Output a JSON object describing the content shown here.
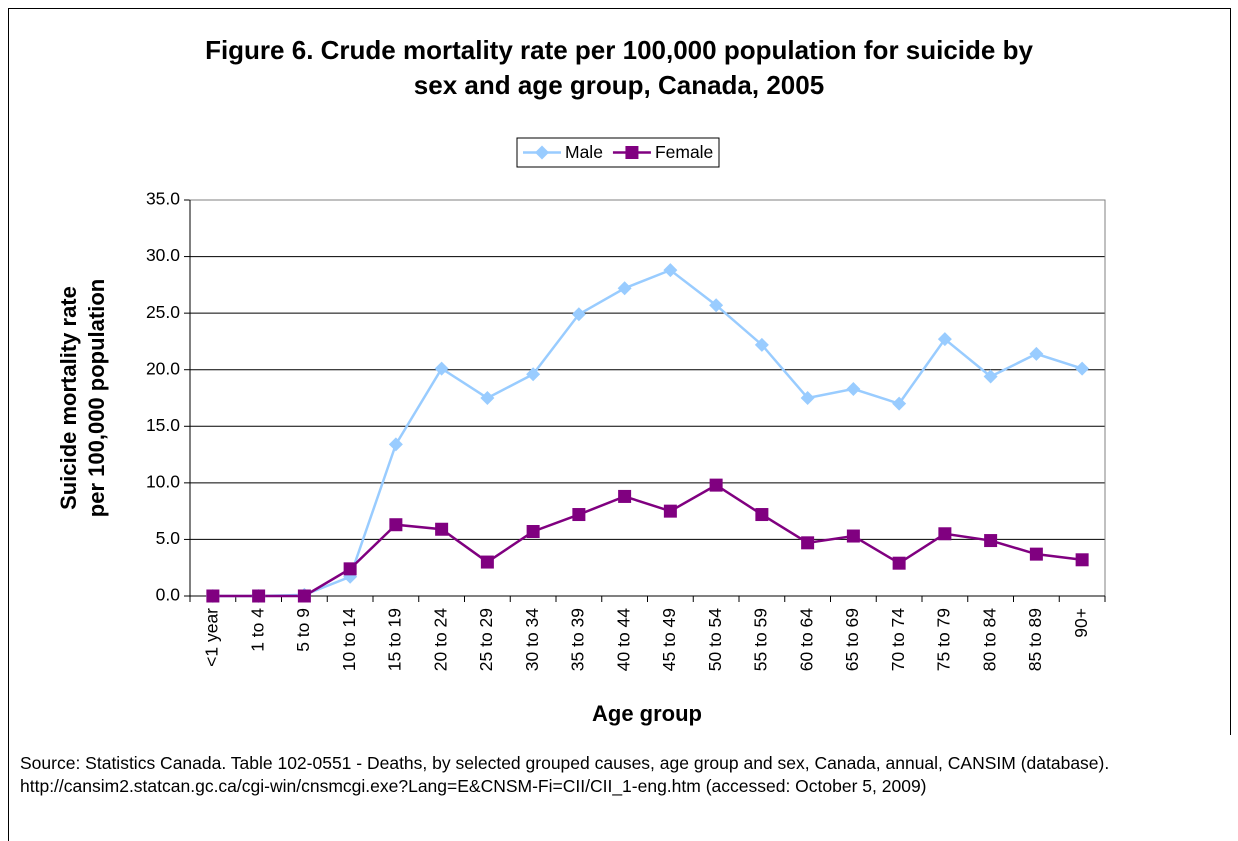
{
  "chart_data": {
    "type": "line",
    "title": [
      "Figure 6.  Crude mortality rate per 100,000 population for suicide by",
      "sex and age group, Canada, 2005"
    ],
    "xlabel": "Age group",
    "ylabel": [
      "Suicide mortality rate",
      "per 100,000 population"
    ],
    "categories": [
      "<1 year",
      "1 to 4",
      "5 to 9",
      "10 to 14",
      "15 to 19",
      "20 to 24",
      "25 to 29",
      "30 to 34",
      "35 to 39",
      "40 to 44",
      "45 to 49",
      "50 to 54",
      "55 to 59",
      "60 to 64",
      "65 to 69",
      "70 to 74",
      "75 to 79",
      "80 to 84",
      "85 to 89",
      "90+"
    ],
    "series": [
      {
        "name": "Male",
        "color": "#99ccff",
        "marker": "diamond",
        "values": [
          0,
          0,
          0.1,
          1.7,
          13.4,
          20.1,
          17.5,
          19.6,
          24.9,
          27.2,
          28.8,
          25.7,
          22.2,
          17.5,
          18.3,
          17.0,
          22.7,
          19.4,
          21.4,
          20.1
        ]
      },
      {
        "name": "Female",
        "color": "#800080",
        "marker": "square",
        "values": [
          0,
          0,
          0,
          2.4,
          6.3,
          5.9,
          3.0,
          5.7,
          7.2,
          8.8,
          7.5,
          9.8,
          7.2,
          4.7,
          5.3,
          2.9,
          5.5,
          4.9,
          3.7,
          3.2
        ]
      }
    ],
    "ylim": [
      0,
      35
    ],
    "yticks": [
      {
        "value": 0,
        "label": "0.0"
      },
      {
        "value": 5,
        "label": "5.0"
      },
      {
        "value": 10,
        "label": "10.0"
      },
      {
        "value": 15,
        "label": "15.0"
      },
      {
        "value": 20,
        "label": "20.0"
      },
      {
        "value": 25,
        "label": "25.0"
      },
      {
        "value": 30,
        "label": "30.0"
      },
      {
        "value": 35,
        "label": "35.0"
      }
    ],
    "grid": true,
    "legend": "top",
    "source": "Source: Statistics Canada. Table 102-0551 - Deaths, by selected grouped causes, age group and sex, Canada, annual, CANSIM (database). http://cansim2.statcan.gc.ca/cgi-win/cnsmcgi.exe?Lang=E&CNSM-Fi=CII/CII_1-eng.htm (accessed: October 5, 2009)"
  }
}
